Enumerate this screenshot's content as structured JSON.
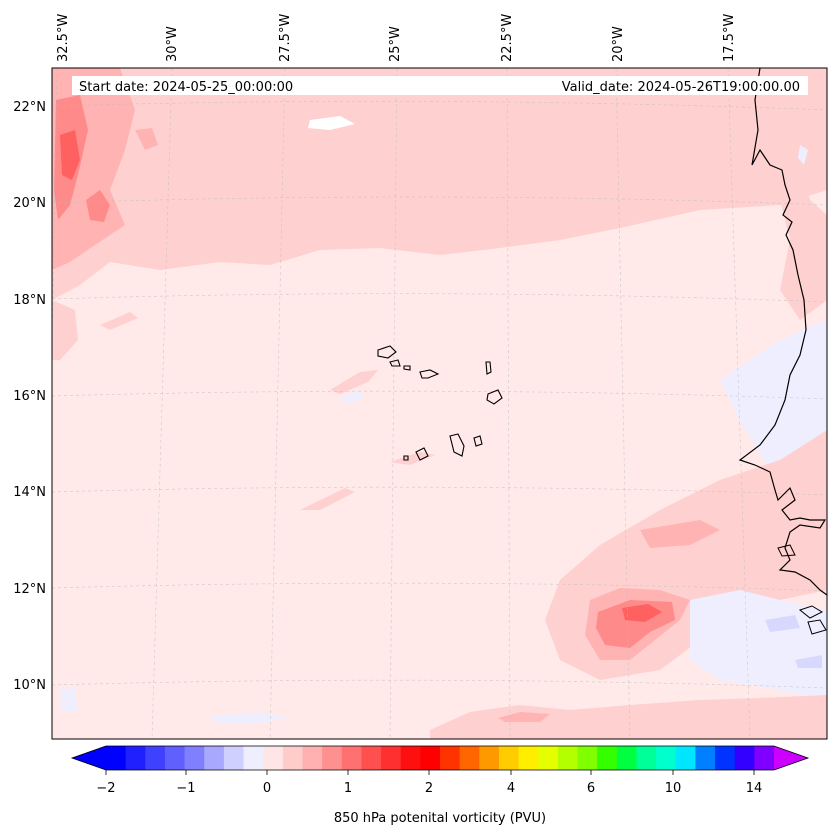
{
  "header": {
    "start_date": "Start date: 2024-05-25_00:00:00",
    "valid_date": "Valid_date: 2024-05-26T19:00:00.00"
  },
  "longitude_labels": [
    "32.5°W",
    "30°W",
    "27.5°W",
    "25°W",
    "22.5°W",
    "20°W",
    "17.5°W"
  ],
  "latitude_labels": [
    "22°N",
    "20°N",
    "18°N",
    "16°N",
    "14°N",
    "12°N",
    "10°N"
  ],
  "colorbar": {
    "title": "850 hPa potenital vorticity (PVU)",
    "tick_labels": [
      "−2",
      "−1",
      "0",
      "1",
      "2",
      "4",
      "6",
      "10",
      "14"
    ],
    "colors": [
      "#0000ff",
      "#2020ff",
      "#4040ff",
      "#6060ff",
      "#8080ff",
      "#a8a8ff",
      "#d0d0ff",
      "#eeeeff",
      "#ffe6e6",
      "#ffcccc",
      "#ffb0b0",
      "#ff9090",
      "#ff7070",
      "#ff5050",
      "#ff3030",
      "#ff1010",
      "#ff0000",
      "#ff3300",
      "#ff6600",
      "#ff9900",
      "#ffcc00",
      "#ffee00",
      "#e6ff00",
      "#b3ff00",
      "#80ff00",
      "#33ff00",
      "#00ff40",
      "#00ff99",
      "#00ffcc",
      "#00e6ff",
      "#0080ff",
      "#0033ff",
      "#3300ff",
      "#8000ff"
    ],
    "under_color": "#0000ff",
    "over_color": "#cc00ff"
  },
  "map_colors": {
    "background": "#ffe9e9",
    "light_pink": "#ffd0d0",
    "medium_pink": "#ffb3b3",
    "strong_pink": "#ff8a8a",
    "red": "#ff6060",
    "light_blue": "#eeeeff",
    "blue": "#d8d8ff"
  },
  "place_labels": []
}
